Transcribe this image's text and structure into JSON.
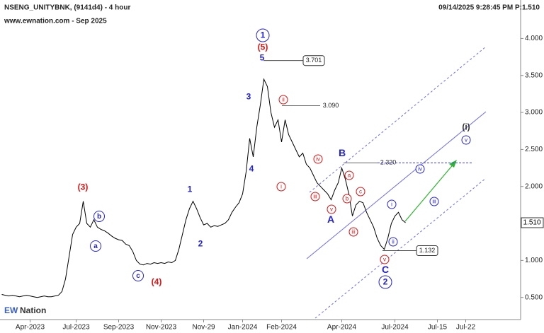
{
  "header": {
    "title": "NSENG_UNITYBNK, (9141d4) - 4 hour",
    "subtitle": "www.ewnation.com  - Sep 2025",
    "timestamp": "09/14/2025 9:28:45 PM  P:1.510"
  },
  "logo": {
    "mark": "EW",
    "text": "Nation"
  },
  "chart_data": {
    "type": "line",
    "color": "#000000",
    "grid": false,
    "categories": [
      null,
      null,
      null,
      null,
      null,
      null,
      null,
      null,
      "Apr-2023",
      null,
      null,
      null,
      null,
      null,
      null,
      null,
      null,
      null,
      null,
      null,
      null,
      "Jul-2023",
      null,
      null,
      null,
      null,
      null,
      null,
      null,
      null,
      null,
      null,
      null,
      "Sep-2023",
      null,
      null,
      null,
      null,
      null,
      null,
      null,
      null,
      null,
      null,
      null,
      "Nov-2023",
      null,
      null,
      null,
      null,
      null,
      null,
      null,
      null,
      null,
      null,
      null,
      "Nov-29",
      null,
      null,
      null,
      null,
      null,
      null,
      null,
      null,
      null,
      null,
      "Jan-2024",
      null,
      null,
      null,
      null,
      null,
      null,
      null,
      null,
      null,
      null,
      "Feb-2024",
      null,
      null,
      null,
      null,
      null,
      null,
      null,
      null,
      null,
      null,
      null,
      null,
      null,
      null,
      null,
      null,
      "Apr-2024",
      null,
      null,
      null,
      null,
      null,
      null,
      null,
      null,
      null,
      null,
      null,
      null,
      null,
      null,
      "Jul-2024",
      null,
      null,
      null,
      null,
      null,
      null,
      null,
      null,
      null,
      null,
      null,
      "Jul-15",
      null,
      null,
      null,
      null,
      null,
      null,
      null,
      "Jul-22",
      null,
      null,
      null,
      null,
      null,
      null,
      null,
      null,
      null,
      null,
      null,
      null,
      null,
      null,
      null
    ],
    "values": [
      0.54,
      0.53,
      0.52,
      0.53,
      0.52,
      0.51,
      0.52,
      0.53,
      0.52,
      0.51,
      0.5,
      0.51,
      0.52,
      0.51,
      0.51,
      0.52,
      0.53,
      0.58,
      0.75,
      1.05,
      1.35,
      1.45,
      1.5,
      1.8,
      1.5,
      1.45,
      1.55,
      1.45,
      1.42,
      1.4,
      1.37,
      1.33,
      1.3,
      1.28,
      1.27,
      1.22,
      1.2,
      1.12,
      1.0,
      0.95,
      0.94,
      0.96,
      0.95,
      0.97,
      0.96,
      0.97,
      0.96,
      0.98,
      0.97,
      1.0,
      1.15,
      1.35,
      1.55,
      1.7,
      1.8,
      1.7,
      1.58,
      1.48,
      1.5,
      1.45,
      1.47,
      1.46,
      1.48,
      1.5,
      1.55,
      1.65,
      1.72,
      1.78,
      1.9,
      2.2,
      2.65,
      2.4,
      2.8,
      3.1,
      3.45,
      3.35,
      3.0,
      2.8,
      2.9,
      2.6,
      2.9,
      2.7,
      2.6,
      2.5,
      2.4,
      2.45,
      2.3,
      2.25,
      2.15,
      2.05,
      2.0,
      1.95,
      1.9,
      1.82,
      1.95,
      2.05,
      2.25,
      2.1,
      1.9,
      1.6,
      1.75,
      1.8,
      1.78,
      1.65,
      1.55,
      1.45,
      1.3,
      1.2,
      1.15,
      1.3,
      1.5,
      1.6,
      1.65,
      1.55,
      1.51,
      null,
      null,
      null,
      null,
      null,
      null,
      null,
      null,
      null,
      null,
      null,
      null,
      null,
      null,
      null,
      null,
      null,
      null,
      null,
      null,
      null,
      null,
      null,
      null,
      null,
      null,
      null,
      null,
      null,
      null,
      null,
      null
    ],
    "ylim": [
      0.22,
      4.52
    ],
    "yticks": [
      {
        "value": 0.5,
        "label": "0.500"
      },
      {
        "value": 1,
        "label": "1.000"
      },
      {
        "value": 1.5,
        "label": "1.500"
      },
      {
        "value": 2,
        "label": "2.000"
      },
      {
        "value": 2.5,
        "label": "2.500"
      },
      {
        "value": 3,
        "label": "3.000"
      },
      {
        "value": 3.5,
        "label": "3.500"
      },
      {
        "value": 4,
        "label": "4.000"
      }
    ],
    "last_price": {
      "value": 1.51,
      "label": "1.510"
    },
    "levels": [
      3.701,
      {
        "value": 3.09,
        "label": "3.090"
      },
      {
        "value": 2.32,
        "label": "2.320"
      },
      1.132
    ],
    "annotations": [
      "1",
      "(5)",
      "5",
      "3",
      "4",
      "1",
      "2",
      "(3)",
      "(4)",
      "b",
      "a",
      "c",
      "B",
      "A",
      "C",
      "2",
      "(i)",
      "v",
      "iv",
      "iii",
      "ii",
      "i",
      "ii",
      "i",
      "iii",
      "iv",
      "v",
      "a",
      "b",
      "c",
      "iii",
      "v"
    ]
  }
}
